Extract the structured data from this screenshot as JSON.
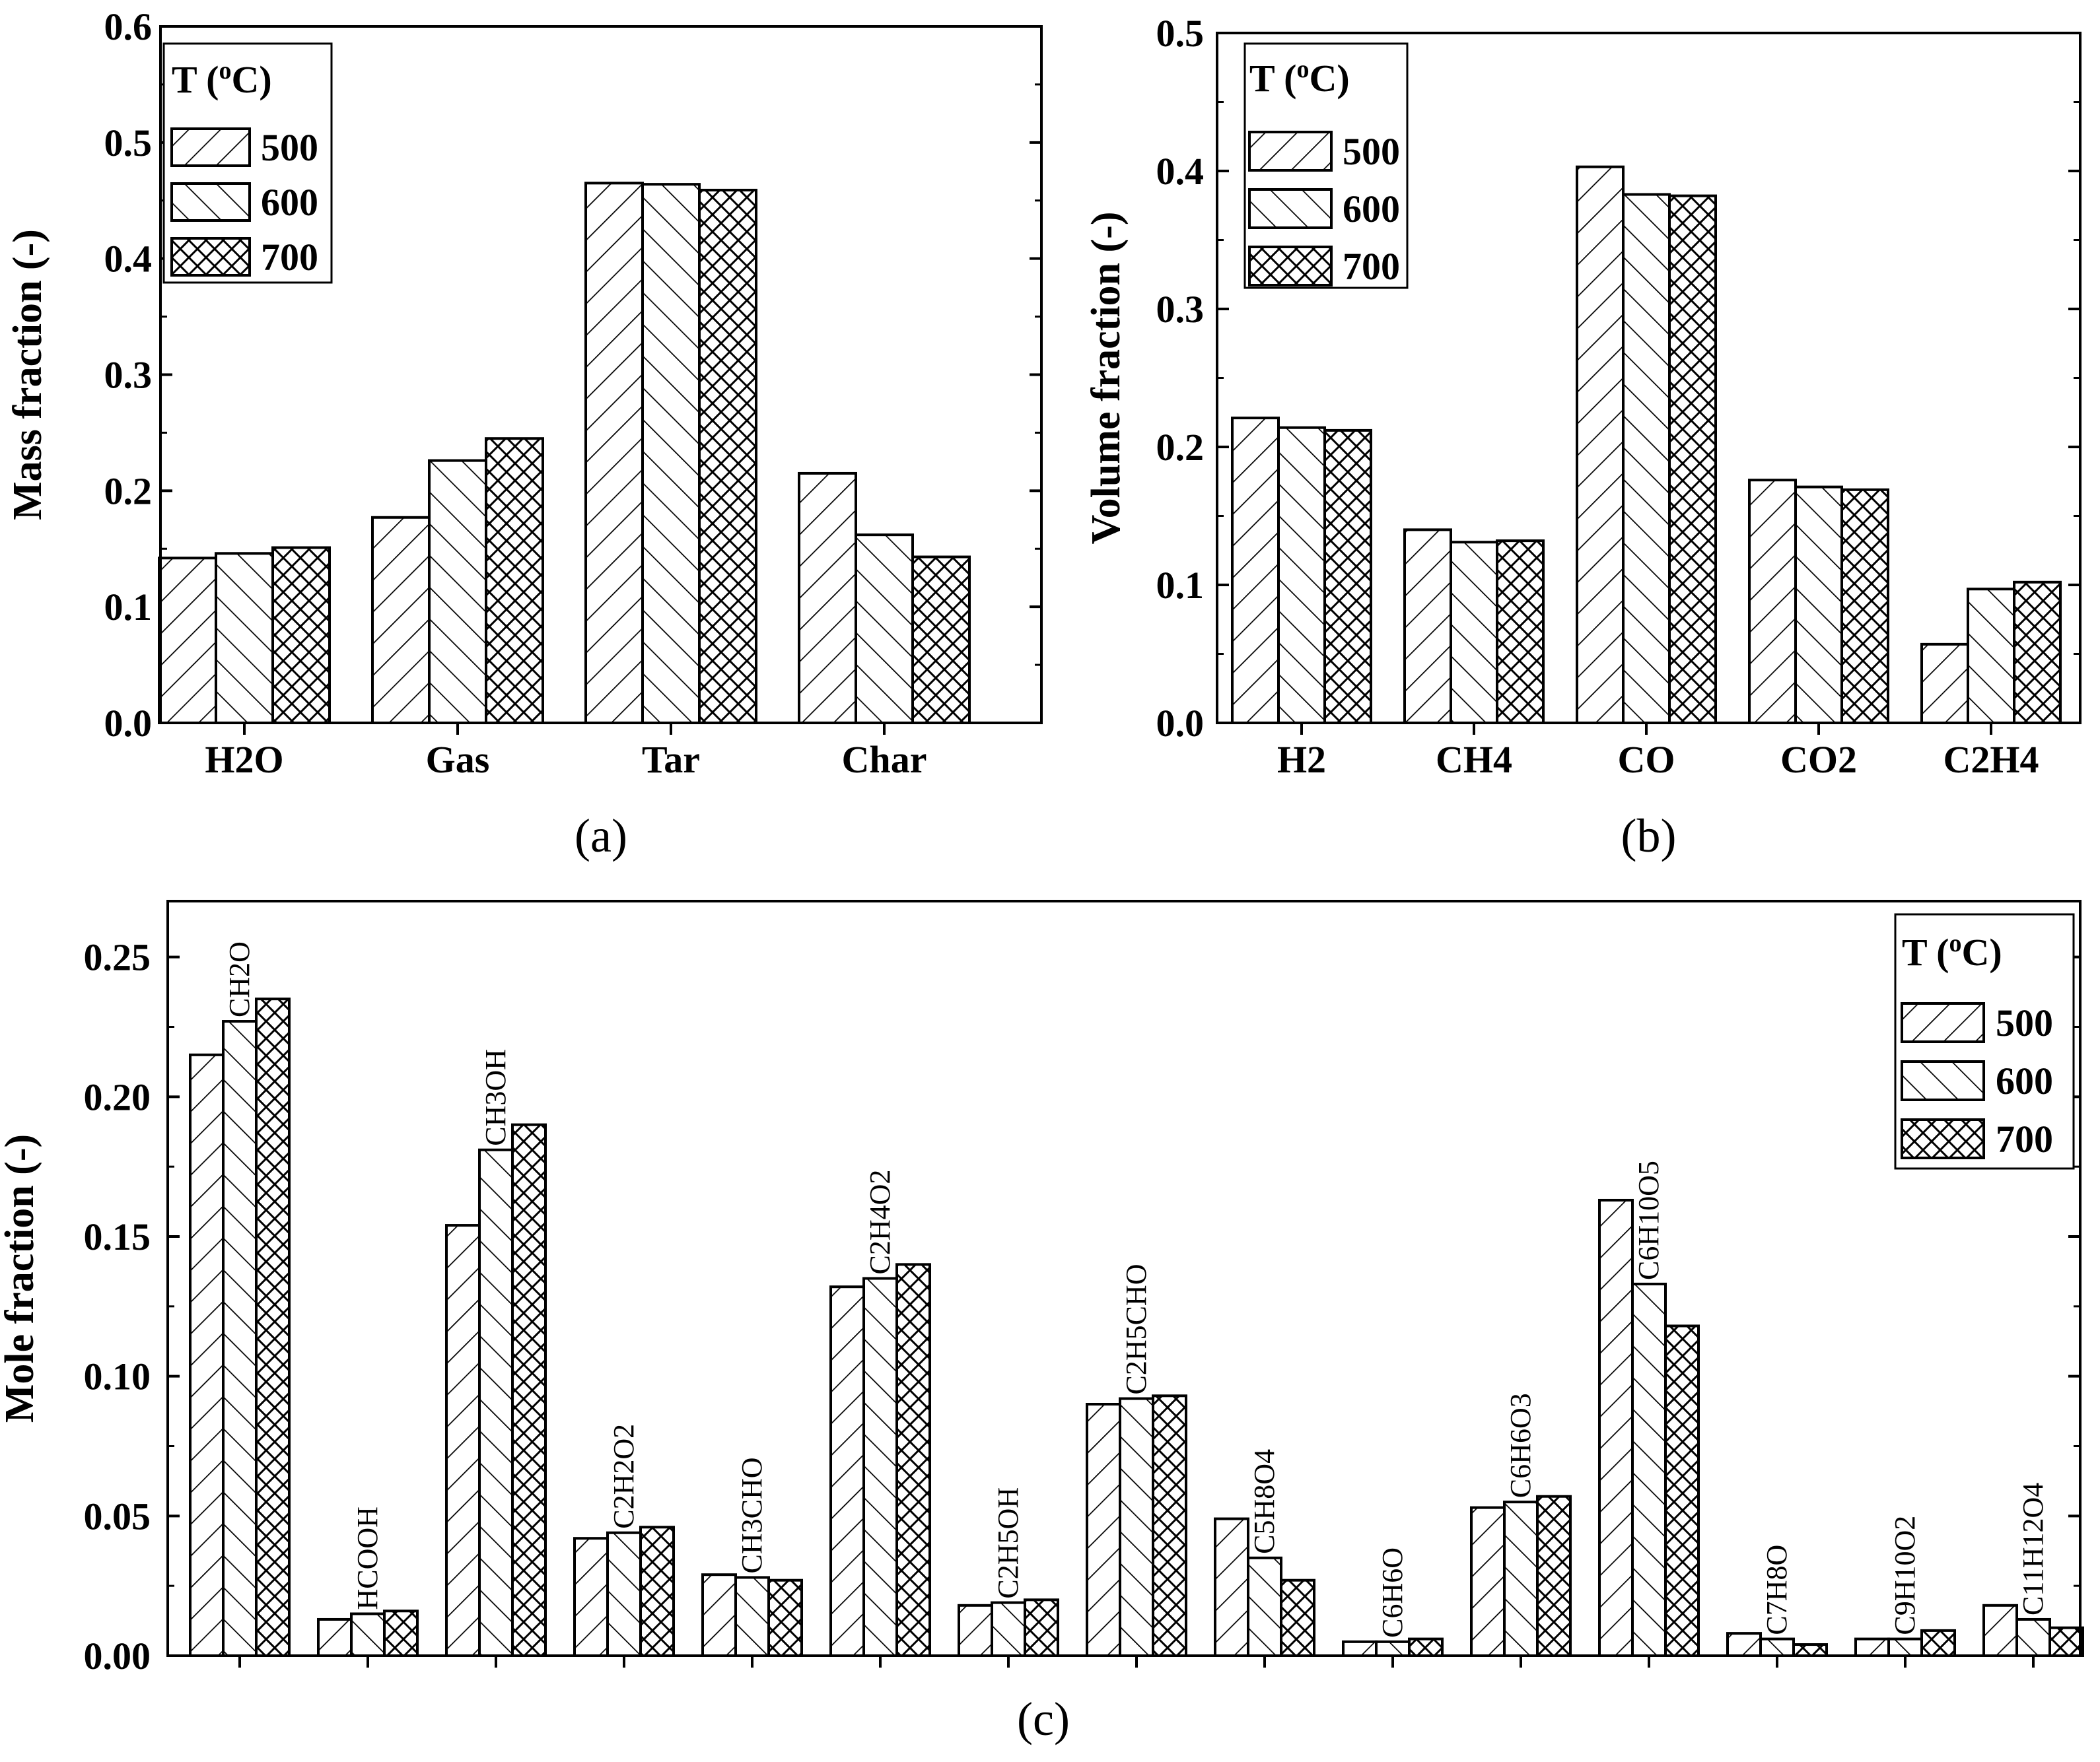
{
  "chart_data": [
    {
      "panel": "a",
      "type": "bar",
      "caption": "(a)",
      "ylabel": "Mass fraction (-)",
      "xlabel": "",
      "ylim": [
        0,
        0.6
      ],
      "yticks": [
        "0.0",
        "0.1",
        "0.2",
        "0.3",
        "0.4",
        "0.5",
        "0.6"
      ],
      "categories": [
        "H2O",
        "Gas",
        "Tar",
        "Char"
      ],
      "legend": {
        "title": "T (",
        "title_sup": "o",
        "title_end": "C)",
        "position": "top-left"
      },
      "series": [
        {
          "name": "500",
          "pattern": "diag-right",
          "values": [
            0.142,
            0.177,
            0.465,
            0.215
          ]
        },
        {
          "name": "600",
          "pattern": "diag-left",
          "values": [
            0.146,
            0.226,
            0.464,
            0.162
          ]
        },
        {
          "name": "700",
          "pattern": "cross",
          "values": [
            0.151,
            0.245,
            0.459,
            0.143
          ]
        }
      ]
    },
    {
      "panel": "b",
      "type": "bar",
      "caption": "(b)",
      "ylabel": "Volume fraction (-)",
      "xlabel": "",
      "ylim": [
        0,
        0.5
      ],
      "yticks": [
        "0.0",
        "0.1",
        "0.2",
        "0.3",
        "0.4",
        "0.5"
      ],
      "categories": [
        "H2",
        "CH4",
        "CO",
        "CO2",
        "C2H4"
      ],
      "legend": {
        "title": "T (",
        "title_sup": "o",
        "title_end": "C)",
        "position": "top-left"
      },
      "series": [
        {
          "name": "500",
          "pattern": "diag-right",
          "values": [
            0.221,
            0.14,
            0.403,
            0.176,
            0.057
          ]
        },
        {
          "name": "600",
          "pattern": "diag-left",
          "values": [
            0.214,
            0.131,
            0.383,
            0.171,
            0.097
          ]
        },
        {
          "name": "700",
          "pattern": "cross",
          "values": [
            0.212,
            0.132,
            0.382,
            0.169,
            0.102
          ]
        }
      ]
    },
    {
      "panel": "c",
      "type": "bar",
      "caption": "(c)",
      "ylabel": "Mole fraction (-)",
      "xlabel": "",
      "ylim": [
        0,
        0.27
      ],
      "yticks": [
        "0.00",
        "0.05",
        "0.10",
        "0.15",
        "0.20",
        "0.25"
      ],
      "categories": [
        "CH2O",
        "HCOOH",
        "CH3OH",
        "C2H2O2",
        "CH3CHO",
        "C2H4O2",
        "C2H5OH",
        "C2H5CHO",
        "C5H8O4",
        "C6H6O",
        "C6H6O3",
        "C6H10O5",
        "C7H8O",
        "C9H10O2",
        "C11H12O4"
      ],
      "legend": {
        "title": "T (",
        "title_sup": "o",
        "title_end": "C)",
        "position": "top-right"
      },
      "series": [
        {
          "name": "500",
          "pattern": "diag-right",
          "values": [
            0.215,
            0.013,
            0.154,
            0.042,
            0.029,
            0.132,
            0.018,
            0.09,
            0.049,
            0.005,
            0.053,
            0.163,
            0.008,
            0.006,
            0.018
          ]
        },
        {
          "name": "600",
          "pattern": "diag-left",
          "values": [
            0.227,
            0.015,
            0.181,
            0.044,
            0.028,
            0.135,
            0.019,
            0.092,
            0.035,
            0.005,
            0.055,
            0.133,
            0.006,
            0.006,
            0.013
          ]
        },
        {
          "name": "700",
          "pattern": "cross",
          "values": [
            0.235,
            0.016,
            0.19,
            0.046,
            0.027,
            0.14,
            0.02,
            0.093,
            0.027,
            0.006,
            0.057,
            0.118,
            0.004,
            0.009,
            0.01
          ]
        }
      ]
    }
  ]
}
